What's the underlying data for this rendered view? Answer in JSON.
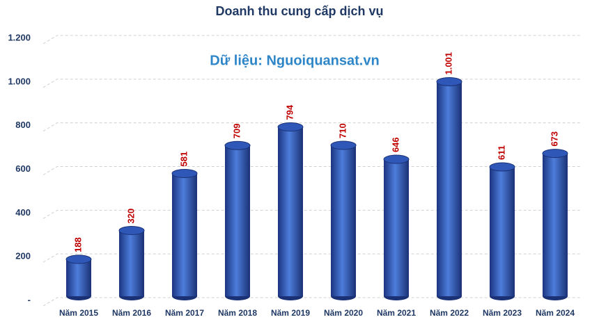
{
  "chart_data": {
    "type": "bar",
    "title": "Doanh thu cung cấp dịch vụ",
    "annotation": "Dữ liệu: Nguoiquansat.vn",
    "categories": [
      "Năm 2015",
      "Năm 2016",
      "Năm 2017",
      "Năm 2018",
      "Năm 2019",
      "Năm 2020",
      "Năm 2021",
      "Năm 2022",
      "Năm 2023",
      "Năm 2024"
    ],
    "values": [
      188,
      320,
      581,
      709,
      794,
      710,
      646,
      1001,
      611,
      673
    ],
    "value_labels": [
      "188",
      "320",
      "581",
      "709",
      "794",
      "710",
      "646",
      "1.001",
      "611",
      "673"
    ],
    "color": "#2e57b8",
    "ylim": [
      0,
      1200
    ],
    "yticks": [
      {
        "value": 0,
        "label": "-"
      },
      200,
      400,
      600,
      800,
      {
        "value": 1000,
        "label": "1.000"
      },
      {
        "value": 1200,
        "label": "1.200"
      }
    ],
    "grid": true
  }
}
